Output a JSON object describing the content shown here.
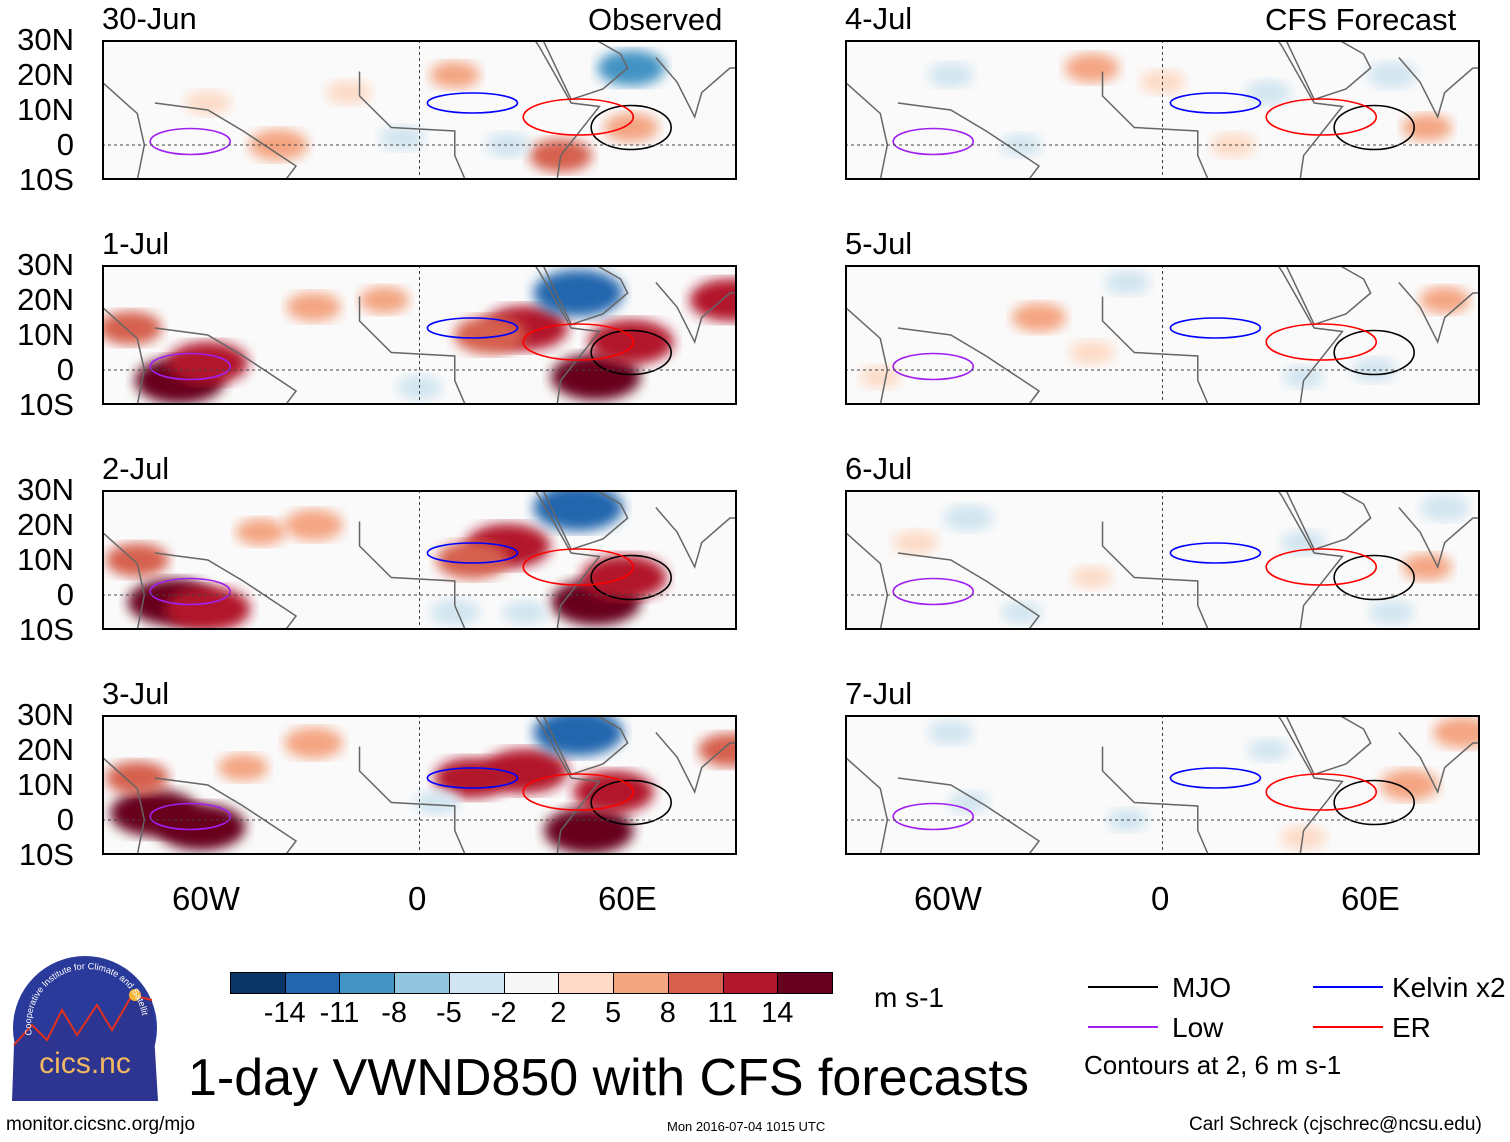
{
  "left_header": "Observed",
  "right_header": "CFS Forecast",
  "panels": [
    {
      "date": "30-Jun",
      "group": "observed",
      "blobs": [
        [
          -60,
          12,
          4
        ],
        [
          -40,
          0,
          7
        ],
        [
          -20,
          15,
          4
        ],
        [
          10,
          20,
          5
        ],
        [
          40,
          -3,
          8
        ],
        [
          60,
          5,
          6
        ],
        [
          60,
          22,
          -9
        ],
        [
          -5,
          2,
          -4
        ],
        [
          25,
          0,
          -4
        ]
      ]
    },
    {
      "date": "1-Jul",
      "group": "observed",
      "blobs": [
        [
          -68,
          -3,
          14
        ],
        [
          -60,
          2,
          12
        ],
        [
          -82,
          12,
          8
        ],
        [
          -30,
          18,
          6
        ],
        [
          30,
          12,
          13
        ],
        [
          20,
          10,
          10
        ],
        [
          50,
          -2,
          14
        ],
        [
          60,
          8,
          13
        ],
        [
          45,
          22,
          -14
        ],
        [
          -10,
          20,
          5
        ],
        [
          88,
          20,
          12
        ],
        [
          0,
          -5,
          -4
        ]
      ]
    },
    {
      "date": "2-Jul",
      "group": "observed",
      "blobs": [
        [
          -70,
          -2,
          14
        ],
        [
          -60,
          -4,
          13
        ],
        [
          -80,
          10,
          8
        ],
        [
          -30,
          20,
          7
        ],
        [
          25,
          14,
          13
        ],
        [
          15,
          10,
          10
        ],
        [
          50,
          -2,
          14
        ],
        [
          58,
          5,
          13
        ],
        [
          45,
          25,
          -14
        ],
        [
          -45,
          18,
          5
        ],
        [
          10,
          -5,
          -5
        ],
        [
          30,
          -5,
          -4
        ]
      ]
    },
    {
      "date": "3-Jul",
      "group": "observed",
      "blobs": [
        [
          -75,
          2,
          14
        ],
        [
          -62,
          -2,
          14
        ],
        [
          -80,
          12,
          8
        ],
        [
          -30,
          22,
          7
        ],
        [
          30,
          14,
          13
        ],
        [
          15,
          12,
          11
        ],
        [
          48,
          -3,
          14
        ],
        [
          55,
          8,
          12
        ],
        [
          45,
          25,
          -14
        ],
        [
          -50,
          15,
          5
        ],
        [
          88,
          20,
          8
        ],
        [
          5,
          5,
          -4
        ]
      ]
    },
    {
      "date": "4-Jul",
      "group": "forecast",
      "blobs": [
        [
          -20,
          22,
          6
        ],
        [
          0,
          18,
          4
        ],
        [
          -60,
          20,
          -4
        ],
        [
          30,
          15,
          -4
        ],
        [
          65,
          20,
          -5
        ],
        [
          -40,
          0,
          -3
        ],
        [
          20,
          0,
          4
        ],
        [
          75,
          5,
          5
        ]
      ]
    },
    {
      "date": "5-Jul",
      "group": "forecast",
      "blobs": [
        [
          -35,
          15,
          6
        ],
        [
          -20,
          5,
          4
        ],
        [
          -10,
          25,
          -4
        ],
        [
          -80,
          -2,
          3
        ],
        [
          40,
          -2,
          -3
        ],
        [
          80,
          20,
          5
        ],
        [
          60,
          0,
          -4
        ]
      ]
    },
    {
      "date": "6-Jul",
      "group": "forecast",
      "blobs": [
        [
          -55,
          22,
          -5
        ],
        [
          -70,
          15,
          4
        ],
        [
          -20,
          5,
          3
        ],
        [
          40,
          15,
          -4
        ],
        [
          75,
          8,
          5
        ],
        [
          80,
          25,
          -5
        ],
        [
          -40,
          -5,
          -3
        ],
        [
          65,
          -5,
          -4
        ]
      ]
    },
    {
      "date": "7-Jul",
      "group": "forecast",
      "blobs": [
        [
          -60,
          25,
          -4
        ],
        [
          -55,
          5,
          -3
        ],
        [
          30,
          20,
          -3
        ],
        [
          70,
          10,
          7
        ],
        [
          85,
          25,
          7
        ],
        [
          -10,
          0,
          -3
        ],
        [
          40,
          -5,
          4
        ]
      ]
    }
  ],
  "lat_labels": [
    "30N",
    "20N",
    "10N",
    "0",
    "10S"
  ],
  "lon_labels": [
    "60W",
    "0",
    "60E"
  ],
  "colorbar": {
    "colors": [
      "#0b3466",
      "#2266ae",
      "#4393c3",
      "#92c5de",
      "#d1e5f0",
      "#f7f7f7",
      "#fddbc7",
      "#f4a582",
      "#d6604d",
      "#b2182b",
      "#67001f"
    ],
    "ticks": [
      "-14",
      "-11",
      "-8",
      "-5",
      "-2",
      "2",
      "5",
      "8",
      "11",
      "14"
    ],
    "units": "m s-1"
  },
  "legend": {
    "items": [
      {
        "label": "MJO",
        "color": "#000000"
      },
      {
        "label": "Kelvin x2",
        "color": "#0000ff"
      },
      {
        "label": "Low",
        "color": "#a020f0"
      },
      {
        "label": "ER",
        "color": "#ff0000"
      }
    ],
    "note": "Contours at 2, 6 m s-1"
  },
  "title": "1-day VWND850 with CFS forecasts",
  "logo_text": "cics.nc",
  "logo_ring_text": "Cooperative Institute for Climate and Satellites",
  "footer": {
    "url": "monitor.cicsnc.org/mjo",
    "timestamp": "Mon 2016-07-04 1015 UTC",
    "credit": "Carl Schreck (cjschrec@ncsu.edu)"
  }
}
